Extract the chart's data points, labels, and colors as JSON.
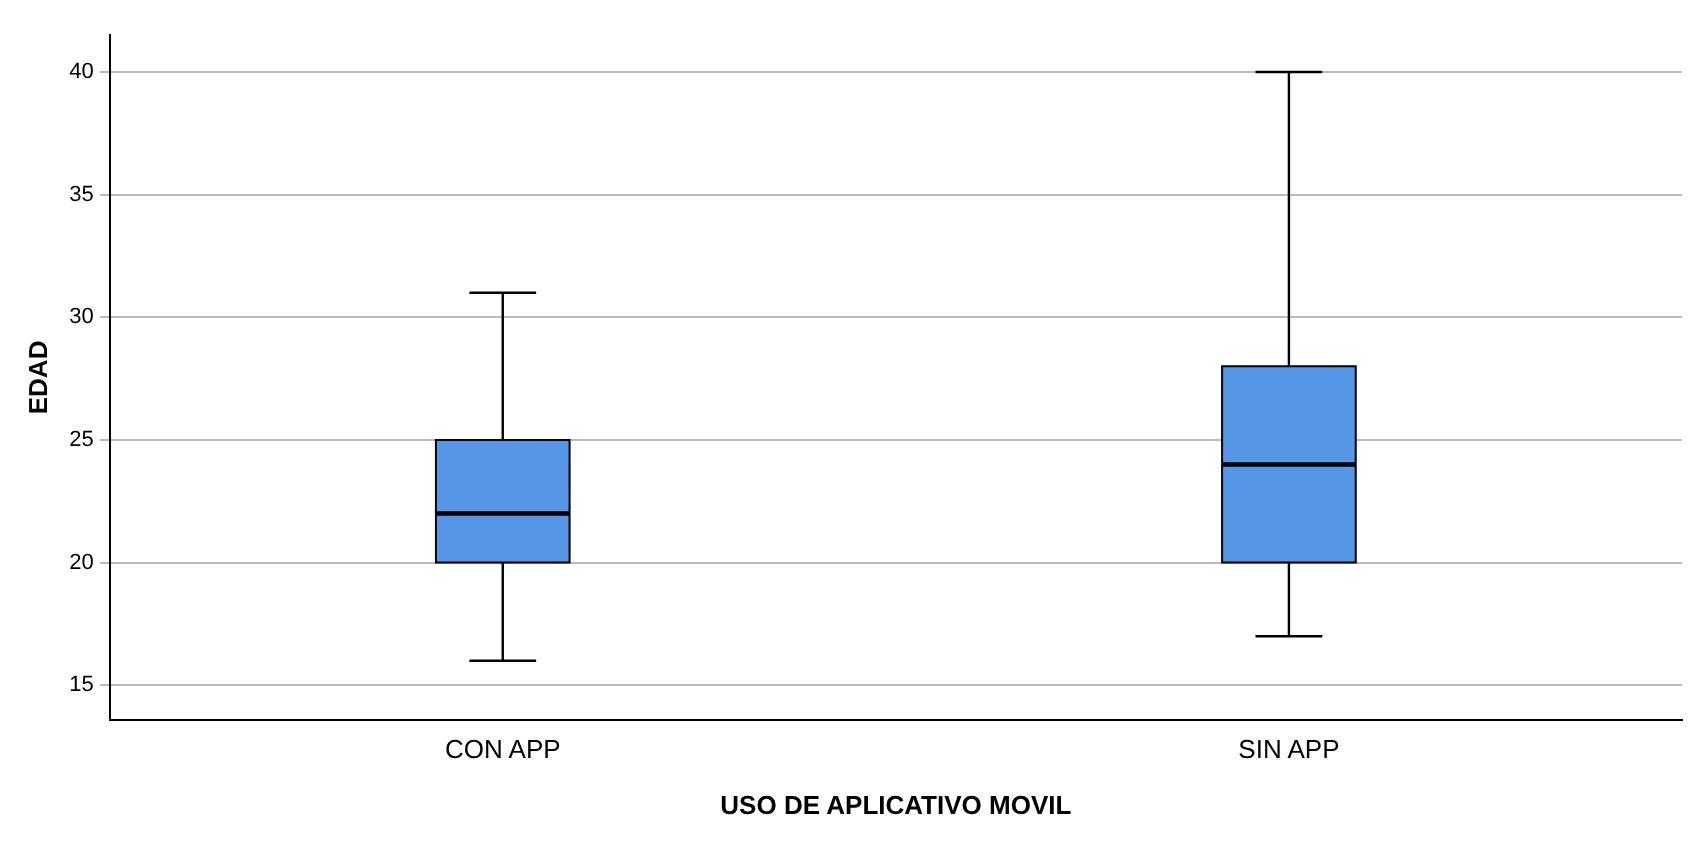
{
  "chart_data": {
    "type": "box",
    "xlabel": "USO DE APLICATIVO MOVIL",
    "ylabel": "EDAD",
    "categories": [
      "CON APP",
      "SIN APP"
    ],
    "boxes": [
      {
        "low": 16,
        "q1": 20,
        "median": 22,
        "q3": 25,
        "high": 31
      },
      {
        "low": 17,
        "q1": 20,
        "median": 24,
        "q3": 28,
        "high": 40
      }
    ],
    "color": "#5596e6",
    "ylim": [
      13.6,
      41.5
    ],
    "yticks": [
      15,
      20,
      25,
      30,
      35,
      40
    ],
    "grid": "y"
  }
}
